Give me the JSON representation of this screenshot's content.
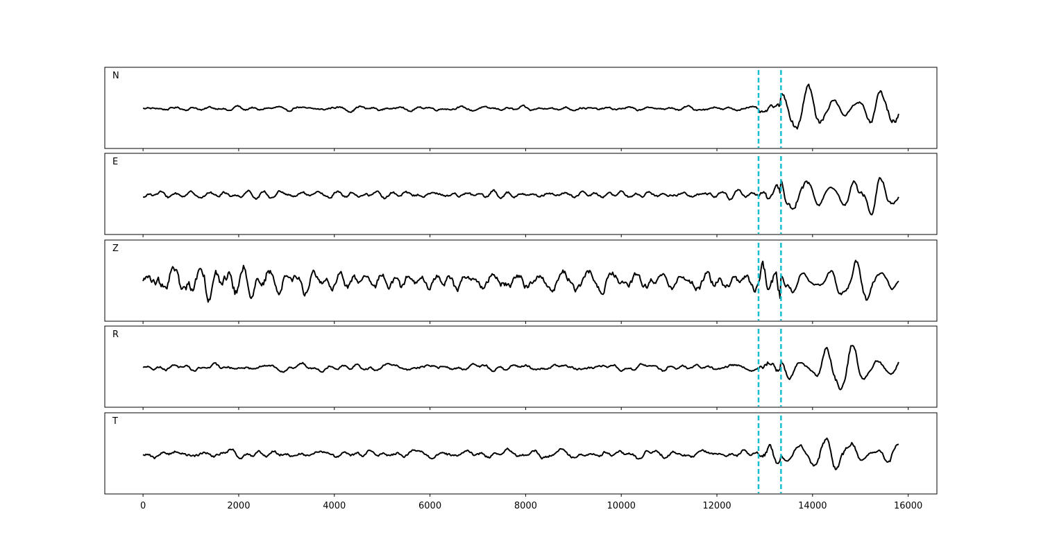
{
  "chart_data": {
    "type": "line",
    "title": "",
    "xlabel": "",
    "ylabel": "",
    "xlim": [
      -800,
      16600
    ],
    "x_ticks": [
      0,
      2000,
      4000,
      6000,
      8000,
      10000,
      12000,
      14000,
      16000
    ],
    "x_tick_labels": [
      "0",
      "2000",
      "4000",
      "6000",
      "8000",
      "10000",
      "12000",
      "14000",
      "16000"
    ],
    "grid": false,
    "legend": "none",
    "sample_count": 15800,
    "trace_color": "#000000",
    "pick_color": "#17becf",
    "vertical_markers": [
      {
        "x": 12870,
        "style": "dashed",
        "color": "#17becf"
      },
      {
        "x": 13340,
        "style": "dashed",
        "color": "#17becf"
      }
    ],
    "panels": [
      {
        "label": "N",
        "approx_envelope": {
          "noise_amp_before_12870": 0.12,
          "max_amp_after_13340": 0.95
        },
        "y_ticks_shown": false
      },
      {
        "label": "E",
        "approx_envelope": {
          "noise_amp_before_12870": 0.16,
          "max_amp_after_13340": 0.9
        },
        "y_ticks_shown": false
      },
      {
        "label": "Z",
        "approx_envelope": {
          "noise_amp_before_12870": 0.45,
          "max_amp_after_13340": 0.85
        },
        "y_ticks_shown": false
      },
      {
        "label": "R",
        "approx_envelope": {
          "noise_amp_before_12870": 0.15,
          "max_amp_after_13340": 0.95
        },
        "y_ticks_shown": false
      },
      {
        "label": "T",
        "approx_envelope": {
          "noise_amp_before_12870": 0.18,
          "max_amp_after_13340": 0.95
        },
        "y_ticks_shown": false
      }
    ]
  }
}
